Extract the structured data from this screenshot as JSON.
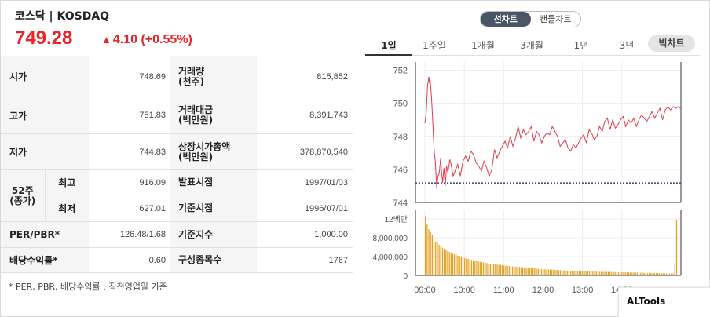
{
  "index": {
    "name": "코스닥 | KOSDAQ",
    "price": "749.28",
    "change_arrow": "▲",
    "change": "4.10 (+0.55%)",
    "up_color": "#e8262a"
  },
  "stats": {
    "open_label": "시가",
    "open": "748.69",
    "volume_label_1": "거래량",
    "volume_label_2": "(천주)",
    "volume": "815,852",
    "high_label": "고가",
    "high": "751.83",
    "value_label_1": "거래대금",
    "value_label_2": "(백만원)",
    "value": "8,391,743",
    "low_label": "저가",
    "low": "744.83",
    "mcap_label_1": "상장시가총액",
    "mcap_label_2": "(백만원)",
    "mcap": "378,870,540",
    "w52_label_1": "52주",
    "w52_label_2": "(종가)",
    "w52_high_label": "최고",
    "w52_high": "916.09",
    "pub_date_label": "발표시점",
    "pub_date": "1997/01/03",
    "w52_low_label": "최저",
    "w52_low": "627.01",
    "base_date_label": "기준시점",
    "base_date": "1996/07/01",
    "per_label": "PER/PBR*",
    "per": "126.48/1.68",
    "base_index_label": "기준지수",
    "base_index": "1,000.00",
    "div_label": "배당수익률*",
    "div": "0.60",
    "constituents_label": "구성종목수",
    "constituents": "1767"
  },
  "footnote": "* PER, PBR, 배당수익률 : 직전영업일 기준",
  "chart_tabs": {
    "line": "선차트",
    "candle": "캔들차트",
    "active": "line"
  },
  "periods": [
    "1일",
    "1주일",
    "1개월",
    "3개월",
    "1년",
    "3년"
  ],
  "active_period": "1일",
  "big_chart_button": "빅차트",
  "altools_label": "ALTools",
  "chart_data": [
    {
      "type": "line",
      "title": "",
      "ylim": [
        744,
        752.5
      ],
      "y_ticks": [
        "752",
        "750",
        "748",
        "746",
        "744"
      ],
      "y_tick_values": [
        752,
        750,
        748,
        746,
        744
      ],
      "reference_line": 745.18,
      "line_color": "#e33c4a",
      "ref_color": "#44557a",
      "x_ticks": [
        "09:00",
        "10:00",
        "11:00",
        "12:00",
        "13:00",
        "14:00"
      ],
      "x_tick_minutes": [
        0,
        60,
        120,
        180,
        240,
        300
      ],
      "x_max_minutes": 390,
      "series": [
        {
          "x_minutes": [
            0,
            2,
            4,
            6,
            7,
            8,
            10,
            12,
            14,
            16,
            18,
            20,
            22,
            24,
            25,
            27,
            29,
            31,
            33,
            35,
            38,
            40,
            43,
            46,
            50,
            54,
            58,
            62,
            66,
            70,
            74,
            78,
            82,
            86,
            90,
            94,
            98,
            102,
            106,
            110,
            114,
            118,
            122,
            126,
            130,
            134,
            138,
            142,
            146,
            150,
            154,
            158,
            162,
            166,
            170,
            174,
            178,
            182,
            186,
            190,
            194,
            198,
            202,
            206,
            210,
            214,
            218,
            222,
            226,
            230,
            234,
            238,
            242,
            246,
            250,
            254,
            258,
            262,
            266,
            270,
            274,
            278,
            282,
            286,
            290,
            294,
            298,
            302,
            306,
            310,
            314,
            318,
            322,
            326,
            330,
            334,
            338,
            342,
            346,
            350,
            354,
            358,
            362,
            366,
            370,
            374,
            378,
            382,
            386,
            389
          ],
          "values": [
            748.8,
            749.4,
            751.0,
            751.6,
            751.2,
            751.4,
            750.4,
            748.9,
            747.2,
            746.4,
            744.9,
            745.6,
            745.8,
            746.7,
            746.0,
            745.2,
            746.1,
            745.0,
            746.2,
            745.8,
            746.6,
            746.3,
            745.6,
            745.9,
            746.3,
            745.6,
            746.5,
            746.8,
            746.5,
            747.1,
            746.9,
            746.4,
            746.2,
            745.9,
            746.5,
            746.1,
            745.6,
            746.0,
            747.2,
            746.7,
            747.1,
            747.4,
            747.7,
            747.3,
            748.0,
            747.4,
            747.9,
            748.6,
            747.9,
            748.4,
            748.1,
            748.3,
            748.6,
            747.7,
            748.3,
            748.1,
            747.6,
            748.0,
            748.2,
            748.1,
            748.6,
            748.3,
            748.0,
            747.4,
            747.6,
            747.8,
            747.3,
            747.1,
            747.5,
            747.3,
            747.6,
            747.9,
            748.1,
            747.6,
            748.4,
            748.2,
            747.8,
            748.0,
            748.6,
            748.3,
            748.9,
            749.1,
            748.4,
            749.0,
            748.5,
            748.7,
            749.0,
            749.2,
            748.6,
            749.0,
            748.8,
            749.1,
            748.6,
            749.0,
            749.3,
            749.1,
            748.9,
            749.2,
            749.5,
            749.1,
            749.4,
            749.7,
            749.0,
            749.6,
            749.8,
            749.6,
            749.8,
            749.7,
            749.8,
            749.7
          ]
        }
      ]
    },
    {
      "type": "bar",
      "title": "",
      "ylim": [
        0,
        14000000
      ],
      "y_ticks": [
        "12백만",
        "8,000,000",
        "4,000,000",
        "0"
      ],
      "y_tick_values": [
        12000000,
        8000000,
        4000000,
        0
      ],
      "bar_color": "#e8a020",
      "x_ticks": [
        "09:00",
        "10:00",
        "11:00",
        "12:00",
        "13:00",
        "14:00"
      ],
      "x_tick_minutes": [
        0,
        60,
        120,
        180,
        240,
        300
      ],
      "x_max_minutes": 390,
      "values": [
        12600000,
        10800000,
        9800000,
        9200000,
        8600000,
        7800000,
        7200000,
        6900000,
        6500000,
        6200000,
        5900000,
        5700000,
        5400000,
        5200000,
        5000000,
        4800000,
        4600000,
        4500000,
        4400000,
        4200000,
        4100000,
        3900000,
        3800000,
        3700000,
        3600000,
        3500000,
        3400000,
        3300000,
        3200000,
        3100000,
        3000000,
        2950000,
        2900000,
        2800000,
        2750000,
        2700000,
        2600000,
        2550000,
        2500000,
        2450000,
        2400000,
        2350000,
        2300000,
        2250000,
        2200000,
        2150000,
        2100000,
        2050000,
        2000000,
        2000000,
        1950000,
        1900000,
        1900000,
        1850000,
        1800000,
        1800000,
        1750000,
        1700000,
        1700000,
        1650000,
        1600000,
        1600000,
        1550000,
        1500000,
        1500000,
        1450000,
        1400000,
        1400000,
        1350000,
        1300000,
        1300000,
        1300000,
        1250000,
        1250000,
        1200000,
        1200000,
        1150000,
        1150000,
        1100000,
        1100000,
        1100000,
        1050000,
        1050000,
        1000000,
        1000000,
        1000000,
        950000,
        950000,
        950000,
        900000,
        900000,
        900000,
        880000,
        860000,
        850000,
        840000,
        830000,
        820000,
        810000,
        800000,
        800000,
        790000,
        780000,
        770000,
        760000,
        750000,
        750000,
        740000,
        730000,
        720000,
        710000,
        700000,
        700000,
        690000,
        680000,
        670000,
        660000,
        650000,
        640000,
        630000,
        620000,
        610000,
        600000,
        600000,
        590000,
        580000,
        570000,
        560000,
        550000,
        540000,
        530000,
        520000,
        510000,
        500000,
        500000,
        490000,
        480000,
        470000,
        460000,
        450000,
        440000,
        430000,
        420000,
        410000,
        400000,
        400000,
        2600000,
        11800000
      ]
    }
  ]
}
